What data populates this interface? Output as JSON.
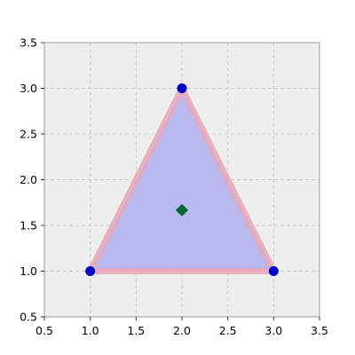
{
  "chart_data": {
    "type": "scatter",
    "title": "",
    "xlabel": "",
    "ylabel": "",
    "xlim": [
      0.5,
      3.5
    ],
    "ylim": [
      0.5,
      3.5
    ],
    "grid": true,
    "legend": "none",
    "xticks": [
      "0.5",
      "1.0",
      "1.5",
      "2.0",
      "2.5",
      "3.0",
      "3.5"
    ],
    "yticks": [
      "0.5",
      "1.0",
      "1.5",
      "2.0",
      "2.5",
      "3.0",
      "3.5"
    ],
    "polygon": {
      "vertices": [
        [
          1.0,
          1.0
        ],
        [
          3.0,
          1.0
        ],
        [
          2.0,
          3.0
        ]
      ],
      "fill_color": "#b9b9f0",
      "edge_color": "#e8a8b8"
    },
    "series": [
      {
        "points": [
          [
            1.0,
            1.0
          ],
          [
            3.0,
            1.0
          ],
          [
            2.0,
            3.0
          ]
        ],
        "marker": "circle",
        "color": "#0000cc"
      },
      {
        "points": [
          [
            2.0,
            1.667
          ]
        ],
        "marker": "diamond",
        "color": "#006633"
      }
    ],
    "colors": {
      "plot_background": "#eeeeee",
      "grid": "#cccccc",
      "axis": "#999999"
    }
  }
}
